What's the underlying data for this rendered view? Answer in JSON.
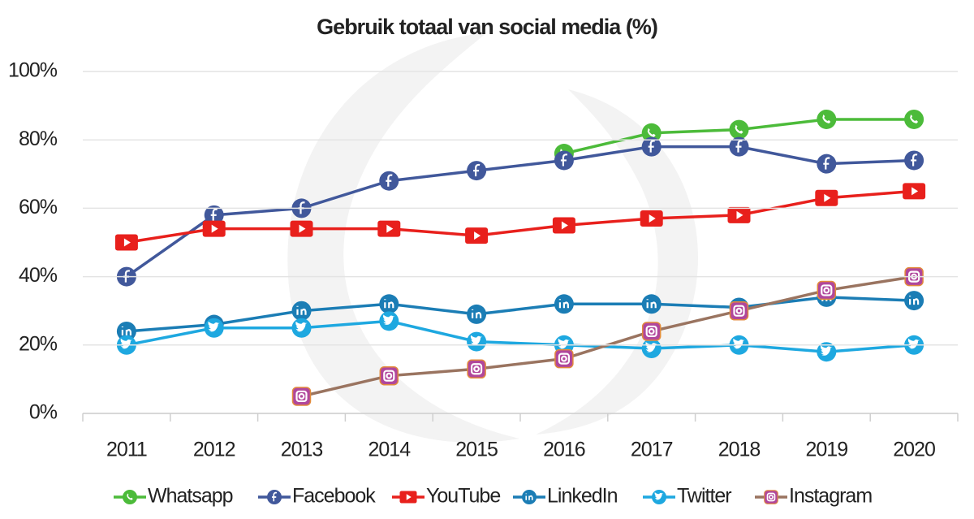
{
  "chart_data": {
    "type": "line",
    "title": "Gebruik totaal van social media (%)",
    "categories": [
      "2011",
      "2012",
      "2013",
      "2014",
      "2015",
      "2016",
      "2017",
      "2018",
      "2019",
      "2020"
    ],
    "series": [
      {
        "name": "Whatsapp",
        "color": "#4cbb3a",
        "values": [
          null,
          null,
          null,
          null,
          null,
          76,
          82,
          83,
          86,
          86
        ]
      },
      {
        "name": "Facebook",
        "color": "#41589b",
        "values": [
          40,
          58,
          60,
          68,
          71,
          74,
          78,
          78,
          73,
          74
        ]
      },
      {
        "name": "YouTube",
        "color": "#e8201c",
        "values": [
          50,
          54,
          54,
          54,
          52,
          55,
          57,
          58,
          63,
          65
        ]
      },
      {
        "name": "LinkedIn",
        "color": "#1b7db5",
        "values": [
          24,
          26,
          30,
          32,
          29,
          32,
          32,
          31,
          34,
          33
        ]
      },
      {
        "name": "Twitter",
        "color": "#1ea8e0",
        "values": [
          20,
          25,
          25,
          27,
          21,
          20,
          19,
          20,
          18,
          20
        ]
      },
      {
        "name": "Instagram",
        "color": "#9a7460",
        "values": [
          null,
          null,
          5,
          11,
          13,
          16,
          24,
          30,
          36,
          40
        ]
      }
    ],
    "ylim": [
      0,
      100
    ],
    "yticks": [
      {
        "value": 0,
        "label": "0%"
      },
      {
        "value": 20,
        "label": "20%"
      },
      {
        "value": 40,
        "label": "40%"
      },
      {
        "value": 60,
        "label": "60%"
      },
      {
        "value": 80,
        "label": "80%"
      },
      {
        "value": 100,
        "label": "100%"
      }
    ],
    "grid": true
  }
}
